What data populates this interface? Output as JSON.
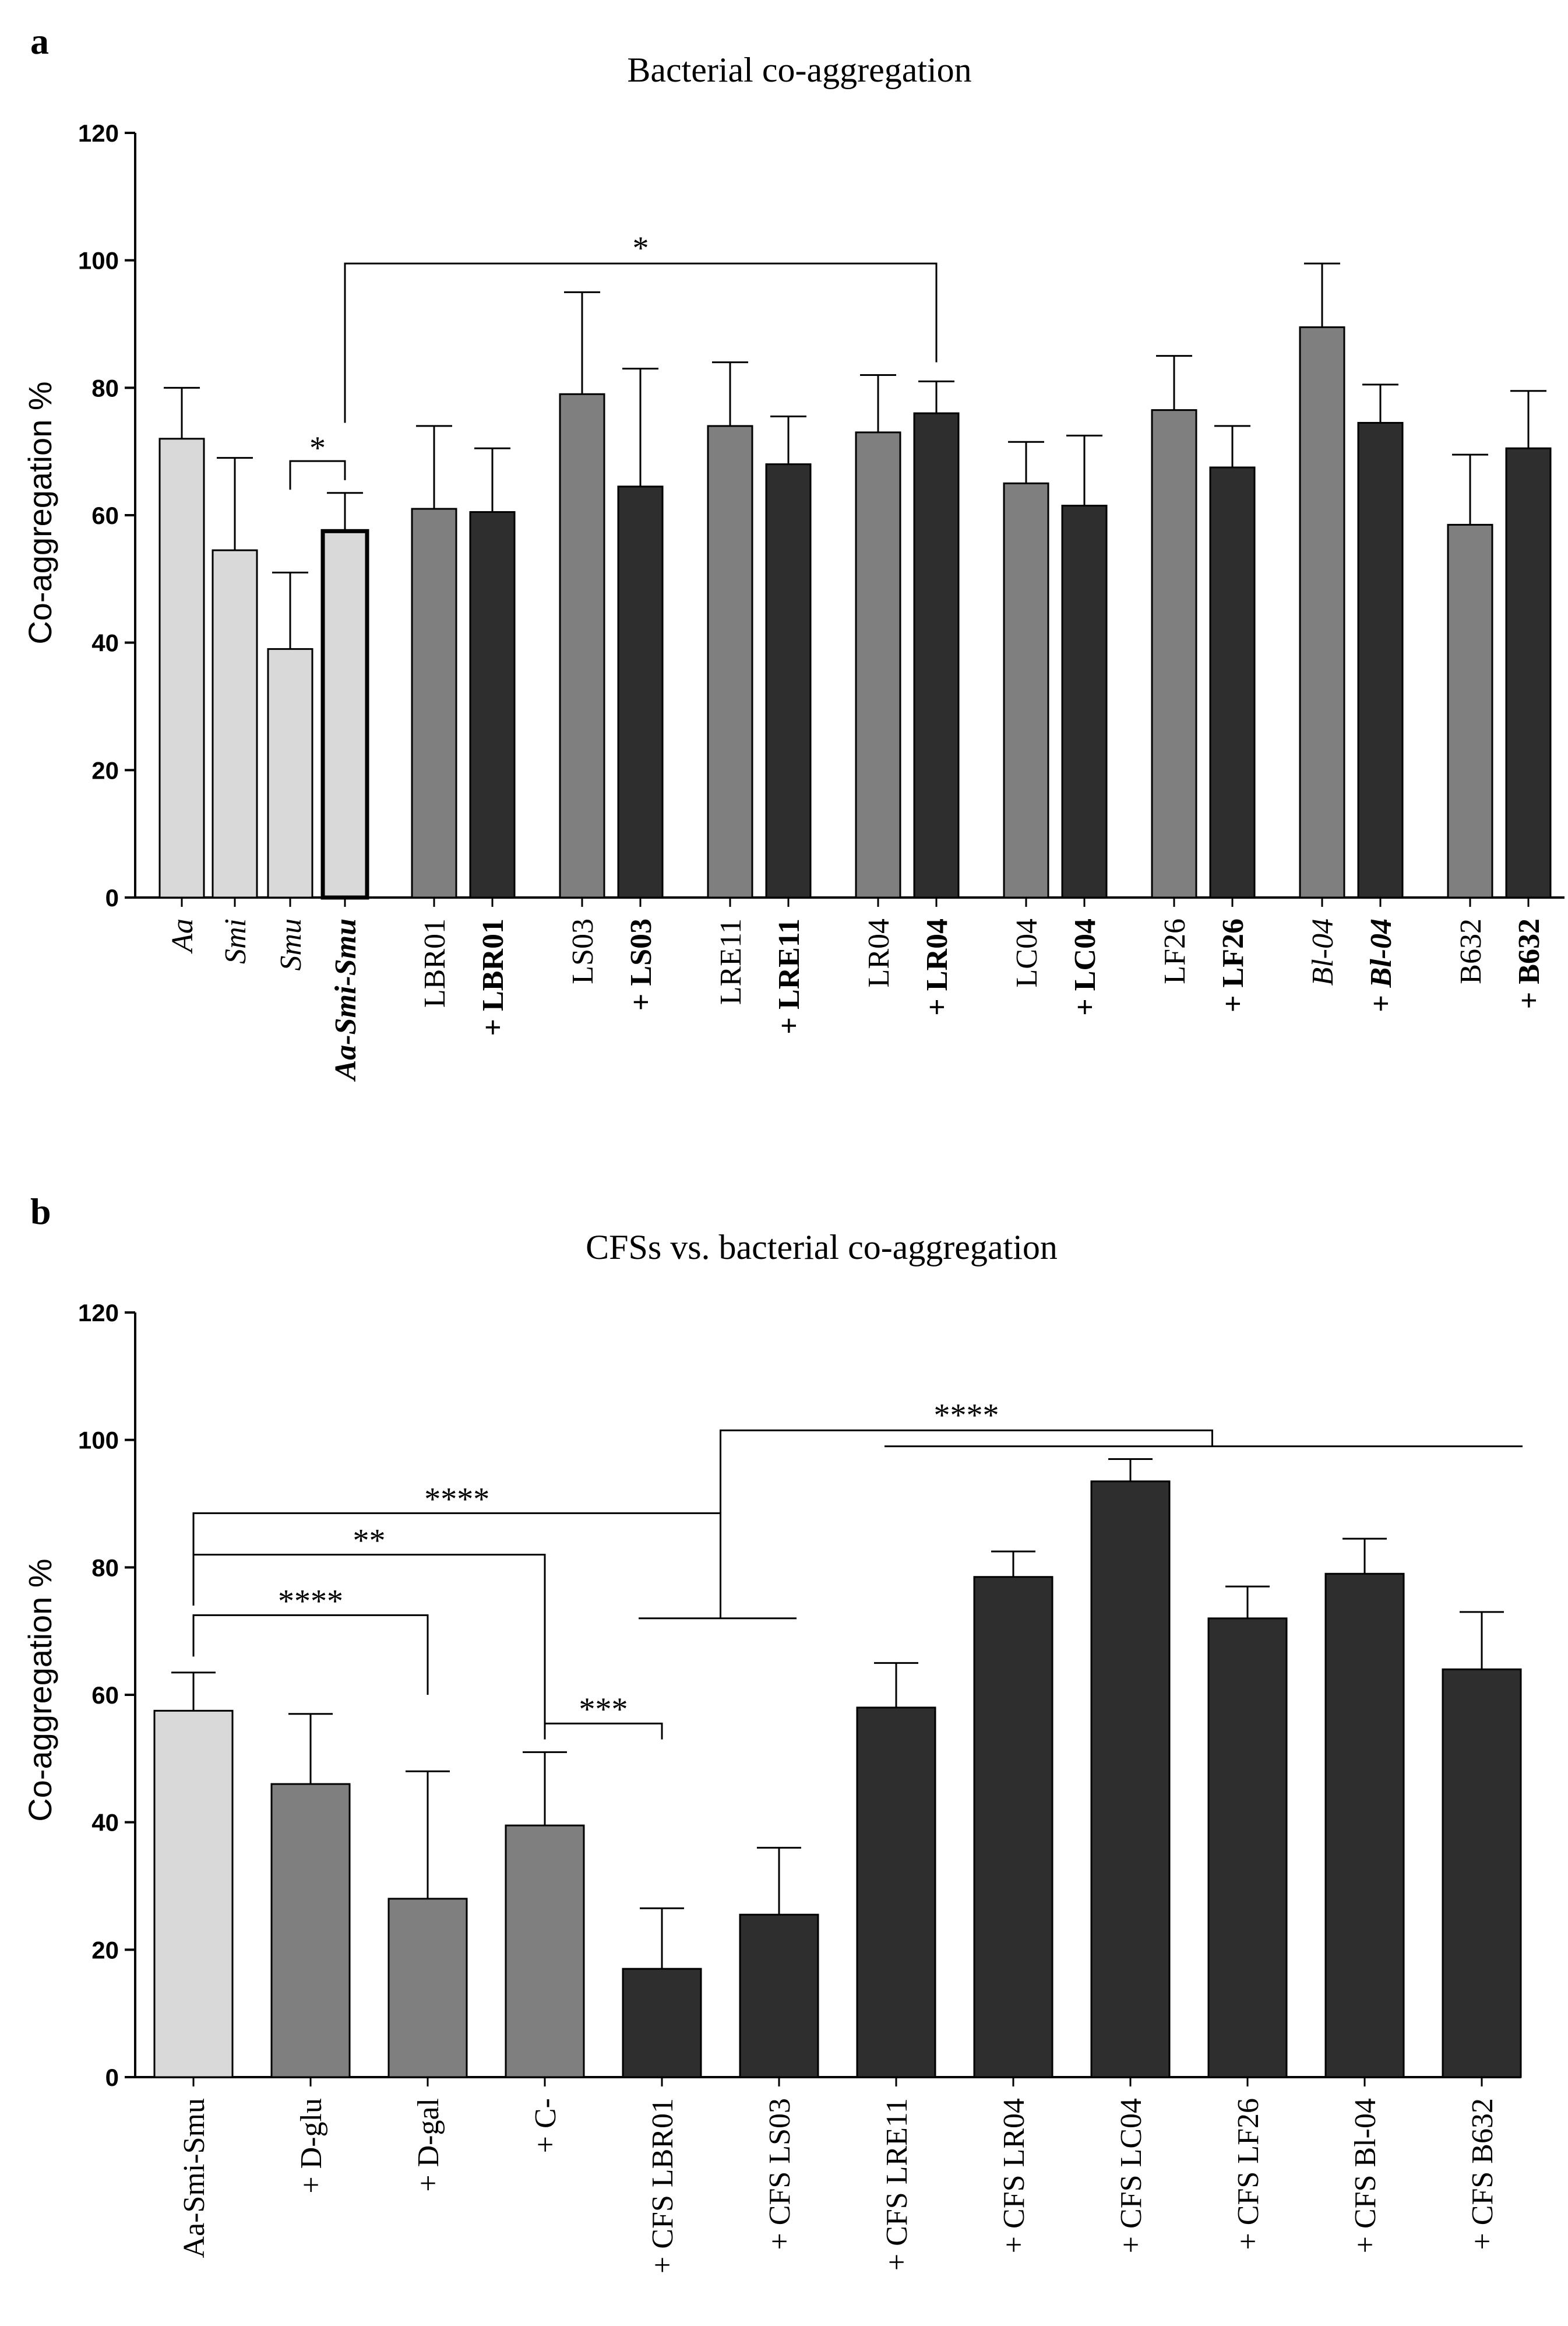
{
  "figure": {
    "panel_a_letter": "a",
    "panel_b_letter": "b"
  },
  "colors": {
    "light": "#d9d9d9",
    "medium": "#7f7f7f",
    "dark": "#2e2e2e",
    "axis": "#000000"
  },
  "chart_data": [
    {
      "type": "bar",
      "title": "Bacterial co-aggregation",
      "xlabel": "",
      "ylabel": "Co-aggregation %",
      "ylim": [
        0,
        120
      ],
      "yticks": [
        0,
        20,
        40,
        60,
        80,
        100,
        120
      ],
      "categories": [
        "Aa",
        "Smi",
        "Smu",
        "Aa-Smi-Smu",
        "LBR01",
        "+ LBR01",
        "LS03",
        "+ LS03",
        "LRE11",
        "+ LRE11",
        "LR04",
        "+ LR04",
        "LC04",
        "+ LC04",
        "LF26",
        "+ LF26",
        "Bl-04",
        "+ Bl-04",
        "B632",
        "+ B632"
      ],
      "values": [
        72,
        54.5,
        39,
        57.5,
        61,
        60.5,
        79,
        64.5,
        74,
        68,
        73,
        76,
        65,
        61.5,
        76.5,
        67.5,
        89.5,
        74.5,
        58.5,
        70.5
      ],
      "errors": [
        8,
        14.5,
        12,
        6,
        13,
        10,
        16,
        18.5,
        10,
        7.5,
        9,
        5,
        6.5,
        11,
        8.5,
        6.5,
        10,
        6,
        11,
        9
      ],
      "bar_shade": [
        "light",
        "light",
        "light",
        "light",
        "medium",
        "dark",
        "medium",
        "dark",
        "medium",
        "dark",
        "medium",
        "dark",
        "medium",
        "dark",
        "medium",
        "dark",
        "medium",
        "dark",
        "medium",
        "dark"
      ],
      "label_style": [
        "italic",
        "italic",
        "italic",
        "bold-italic",
        "normal",
        "bold",
        "normal",
        "bold",
        "normal",
        "bold",
        "normal",
        "bold",
        "normal",
        "bold",
        "normal",
        "bold",
        "italic",
        "bold-italic",
        "normal",
        "bold"
      ],
      "significance": [
        {
          "label": "*",
          "from": "Smu",
          "to": "Aa-Smi-Smu"
        },
        {
          "label": "*",
          "from": "Aa-Smi-Smu",
          "to": "+ LR04"
        }
      ]
    },
    {
      "type": "bar",
      "title": "CFSs vs. bacterial co-aggregation",
      "xlabel": "",
      "ylabel": "Co-aggregation %",
      "ylim": [
        0,
        120
      ],
      "yticks": [
        0,
        20,
        40,
        60,
        80,
        100,
        120
      ],
      "categories": [
        "Aa-Smi-Smu",
        "+ D-glu",
        "+ D-gal",
        "+ C-",
        "+ CFS LBR01",
        "+ CFS LS03",
        "+ CFS LRE11",
        "+ CFS LR04",
        "+ CFS LC04",
        "+ CFS LF26",
        "+ CFS Bl-04",
        "+ CFS B632"
      ],
      "values": [
        57.5,
        46,
        28,
        39.5,
        17,
        25.5,
        58,
        78.5,
        93.5,
        72,
        79,
        64
      ],
      "errors": [
        6,
        11,
        20,
        11.5,
        9.5,
        10.5,
        7,
        4,
        3.5,
        5,
        5.5,
        9
      ],
      "bar_shade": [
        "light",
        "medium",
        "medium",
        "medium",
        "dark",
        "dark",
        "dark",
        "dark",
        "dark",
        "dark",
        "dark",
        "dark"
      ],
      "significance": [
        {
          "label": "****",
          "from": "Aa-Smi-Smu",
          "to": "+ D-gal"
        },
        {
          "label": "**",
          "from": "Aa-Smi-Smu",
          "to": "+ C-"
        },
        {
          "label": "****",
          "from": "Aa-Smi-Smu",
          "to": "+ CFS LBR01 / + CFS LS03"
        },
        {
          "label": "***",
          "from": "+ C-",
          "to": "+ CFS LBR01"
        },
        {
          "label": "****",
          "from": "+ CFS LBR01 / + CFS LS03",
          "to": "+ CFS LRE11 … + CFS B632"
        }
      ]
    }
  ]
}
